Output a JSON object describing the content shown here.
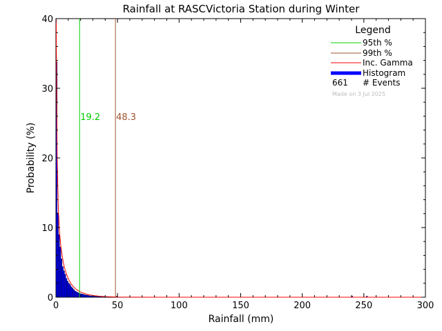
{
  "chart_data": {
    "type": "bar",
    "title": "Rainfall at RASCVictoria Station during Winter",
    "xlabel": "Rainfall (mm)",
    "ylabel": "Probability (%)",
    "xlim": [
      0,
      300
    ],
    "ylim": [
      0,
      40
    ],
    "xticks": [
      "0",
      "50",
      "100",
      "150",
      "200",
      "250",
      "300"
    ],
    "yticks": [
      "0",
      "10",
      "20",
      "30",
      "40"
    ],
    "grid": false,
    "legend_placement": "top-right",
    "legend": {
      "title": "Legend",
      "p95_label": "95th %",
      "p99_label": "99th %",
      "gamma_label": "Inc. Gamma",
      "hist_label": "Histogram",
      "events_count": "661",
      "events_label": "# Events",
      "made_on": "Made on 3 Jul 2025"
    },
    "percentiles": [
      {
        "name": "95th %",
        "value": 19.2,
        "label": "19.2",
        "color": "#00cc00"
      },
      {
        "name": "99th %",
        "value": 48.3,
        "label": "48.3",
        "color": "#a0522d"
      }
    ],
    "histogram": {
      "color": "#0000ff",
      "bin_width": 1,
      "bins": [
        [
          0,
          33.8
        ],
        [
          1,
          12.1
        ],
        [
          2,
          9.0
        ],
        [
          3,
          7.2
        ],
        [
          4,
          5.5
        ],
        [
          5,
          4.4
        ],
        [
          6,
          3.8
        ],
        [
          7,
          3.3
        ],
        [
          8,
          2.7
        ],
        [
          9,
          2.3
        ],
        [
          10,
          2.0
        ],
        [
          11,
          1.8
        ],
        [
          12,
          1.5
        ],
        [
          13,
          1.3
        ],
        [
          14,
          1.1
        ],
        [
          15,
          0.9
        ],
        [
          16,
          0.8
        ],
        [
          17,
          0.7
        ],
        [
          18,
          0.6
        ],
        [
          19,
          0.5
        ],
        [
          20,
          0.5
        ],
        [
          21,
          0.45
        ],
        [
          22,
          0.4
        ],
        [
          23,
          0.35
        ],
        [
          24,
          0.3
        ],
        [
          25,
          0.3
        ],
        [
          26,
          0.25
        ],
        [
          27,
          0.2
        ],
        [
          28,
          0.2
        ],
        [
          29,
          0.18
        ],
        [
          30,
          0.15
        ],
        [
          31,
          0.15
        ],
        [
          32,
          0.12
        ],
        [
          33,
          0.12
        ],
        [
          34,
          0.1
        ],
        [
          35,
          0.1
        ],
        [
          36,
          0.08
        ],
        [
          37,
          0.08
        ],
        [
          38,
          0.06
        ],
        [
          39,
          0.06
        ],
        [
          40,
          0.05
        ],
        [
          42,
          0.05
        ],
        [
          44,
          0.04
        ],
        [
          46,
          0.04
        ],
        [
          48,
          0.03
        ],
        [
          49,
          0.15
        ],
        [
          50,
          0.03
        ],
        [
          52,
          0.02
        ],
        [
          240,
          0.15
        ],
        [
          252,
          0.15
        ]
      ]
    },
    "gamma_curve": {
      "color": "#ff0000",
      "points": [
        [
          0.2,
          40
        ],
        [
          0.5,
          30
        ],
        [
          1,
          20
        ],
        [
          2,
          12.5
        ],
        [
          3,
          9.2
        ],
        [
          4,
          7.3
        ],
        [
          5,
          6.0
        ],
        [
          6,
          5.0
        ],
        [
          7,
          4.2
        ],
        [
          8,
          3.6
        ],
        [
          9,
          3.1
        ],
        [
          10,
          2.7
        ],
        [
          12,
          2.0
        ],
        [
          14,
          1.55
        ],
        [
          16,
          1.2
        ],
        [
          18,
          0.95
        ],
        [
          20,
          0.75
        ],
        [
          25,
          0.42
        ],
        [
          30,
          0.25
        ],
        [
          35,
          0.15
        ],
        [
          40,
          0.09
        ],
        [
          50,
          0.03
        ],
        [
          60,
          0.01
        ],
        [
          80,
          0.0
        ],
        [
          300,
          0.0
        ]
      ]
    }
  }
}
